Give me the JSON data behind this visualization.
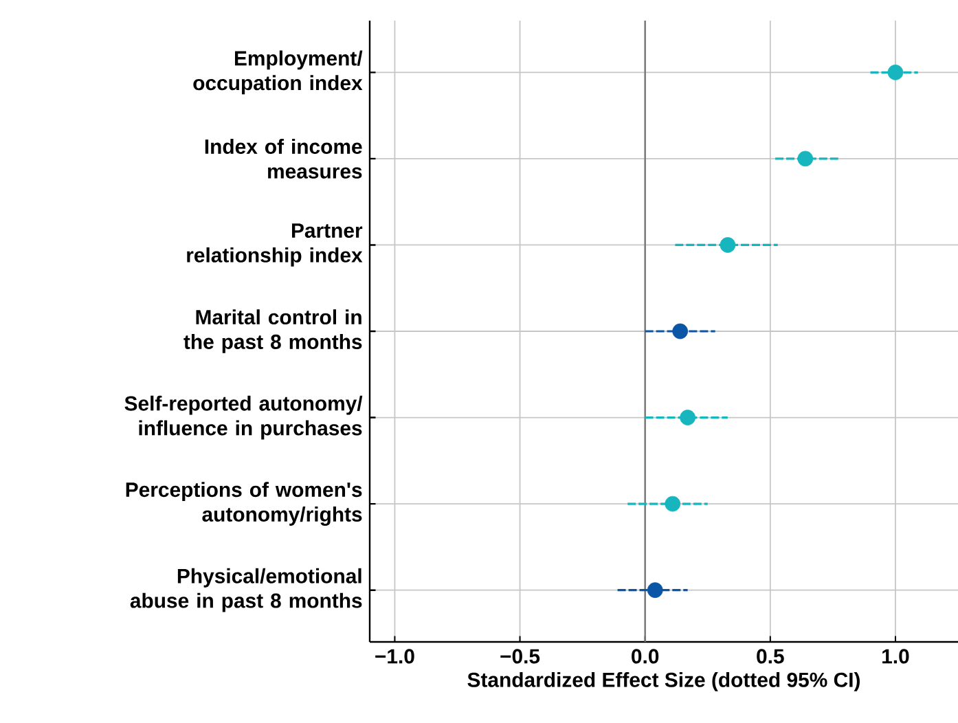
{
  "chart_data": {
    "type": "scatter",
    "orientation": "horizontal",
    "xlabel": "Standardized Effect Size (dotted 95% CI)",
    "categories": [
      "Employment/ occupation index",
      "Index of income measures",
      "Partner relationship index",
      "Marital control in the past 8 months",
      "Self-reported autonomy/ influence in purchases",
      "Perceptions of women's autonomy/rights",
      "Physical/emotional abuse in past 8 months"
    ],
    "values": [
      1.0,
      0.64,
      0.33,
      0.14,
      0.17,
      0.11,
      0.04
    ],
    "errors": [
      [
        0.9,
        1.09
      ],
      [
        0.52,
        0.78
      ],
      [
        0.12,
        0.53
      ],
      [
        0.0,
        0.28
      ],
      [
        0.0,
        0.33
      ],
      [
        -0.07,
        0.25
      ],
      [
        -0.11,
        0.17
      ]
    ],
    "colors": [
      "#17b5bd",
      "#17b5bd",
      "#17b5bd",
      "#0a55a5",
      "#17b5bd",
      "#17b5bd",
      "#0a55a5"
    ],
    "xlim": [
      -1.1,
      1.25
    ],
    "xticks": [
      {
        "value": -1,
        "label": "−1.0"
      },
      {
        "value": -0.5,
        "label": "−0.5"
      },
      {
        "value": 0,
        "label": "0.0"
      },
      {
        "value": 0.5,
        "label": "0.5"
      },
      {
        "value": 1,
        "label": "1.0"
      }
    ],
    "ref_lines": [
      {
        "axis": "x",
        "value": 0,
        "color": "#777777"
      }
    ],
    "grid": true,
    "marker": "circle",
    "line_style": "dashed"
  }
}
